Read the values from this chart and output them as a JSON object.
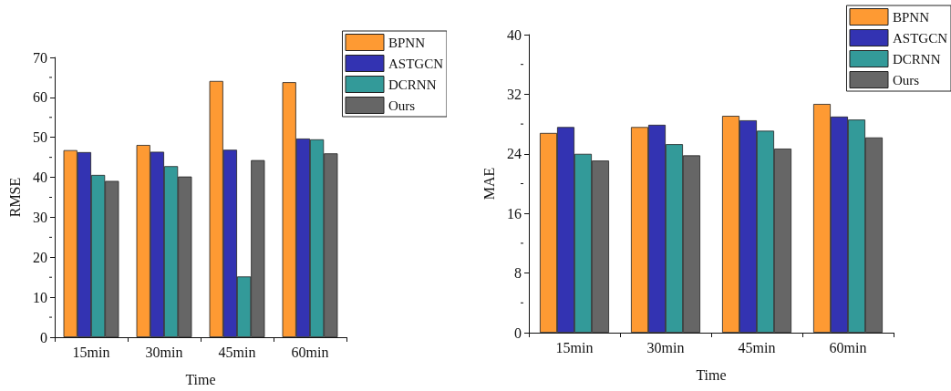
{
  "chart_data": [
    {
      "type": "bar",
      "categories": [
        "15min",
        "30min",
        "45min",
        "60min"
      ],
      "xlabel": "Time",
      "ylabel": "RMSE",
      "ylim": [
        0,
        70
      ],
      "yticks": [
        0,
        10,
        20,
        30,
        40,
        50,
        60,
        70
      ],
      "grid": false,
      "legend": "top right",
      "series": [
        {
          "name": "BPNN",
          "color": "#fe9a33",
          "values": [
            46.8,
            48.1,
            64.1,
            63.8
          ]
        },
        {
          "name": "ASTGCN",
          "color": "#3333b2",
          "values": [
            46.3,
            46.4,
            46.9,
            49.7
          ]
        },
        {
          "name": "DCRNN",
          "color": "#339a99",
          "values": [
            40.6,
            42.8,
            15.2,
            49.5
          ]
        },
        {
          "name": "Ours",
          "color": "#666666",
          "values": [
            39.1,
            40.2,
            44.3,
            46.0
          ]
        }
      ]
    },
    {
      "type": "bar",
      "categories": [
        "15min",
        "30min",
        "45min",
        "60min"
      ],
      "xlabel": "Time",
      "ylabel": "MAE",
      "ylim": [
        0,
        40
      ],
      "yticks": [
        0,
        8,
        16,
        24,
        32,
        40
      ],
      "grid": false,
      "legend": "top right",
      "series": [
        {
          "name": "BPNN",
          "color": "#fe9a33",
          "values": [
            26.8,
            27.6,
            29.1,
            30.7
          ]
        },
        {
          "name": "ASTGCN",
          "color": "#3333b2",
          "values": [
            27.6,
            27.9,
            28.5,
            29.0
          ]
        },
        {
          "name": "DCRNN",
          "color": "#339a99",
          "values": [
            24.0,
            25.3,
            27.1,
            28.6
          ]
        },
        {
          "name": "Ours",
          "color": "#666666",
          "values": [
            23.1,
            23.8,
            24.7,
            26.2
          ]
        }
      ]
    }
  ]
}
